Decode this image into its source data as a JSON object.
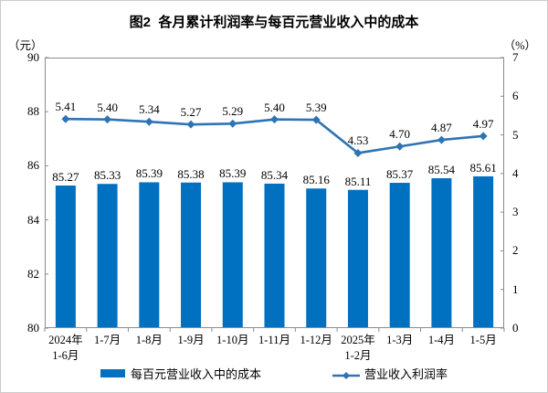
{
  "chart_data": {
    "type": "combo",
    "title": "图2  各月累计利润率与每百元营业收入中的成本",
    "categories": [
      "2024年\n1-6月",
      "1-7月",
      "1-8月",
      "1-9月",
      "1-10月",
      "1-11月",
      "1-12月",
      "2025年\n1-2月",
      "1-3月",
      "1-4月",
      "1-5月"
    ],
    "series": [
      {
        "name": "每百元营业收入中的成本",
        "type": "bar",
        "axis": "left",
        "color": "#0070C0",
        "values": [
          85.27,
          85.33,
          85.39,
          85.38,
          85.39,
          85.34,
          85.16,
          85.11,
          85.37,
          85.54,
          85.61
        ]
      },
      {
        "name": "营业收入利润率",
        "type": "line",
        "axis": "right",
        "color": "#2E74B5",
        "values": [
          5.41,
          5.4,
          5.34,
          5.27,
          5.29,
          5.4,
          5.39,
          4.53,
          4.7,
          4.87,
          4.97
        ]
      }
    ],
    "left_axis": {
      "unit": "（元）",
      "min": 80,
      "max": 90,
      "step": 2
    },
    "right_axis": {
      "unit": "（%）",
      "min": 0,
      "max": 7,
      "step": 1
    },
    "grid": false,
    "legend_position": "bottom",
    "data_labels": true,
    "axis_color": "#8c8c8c"
  }
}
